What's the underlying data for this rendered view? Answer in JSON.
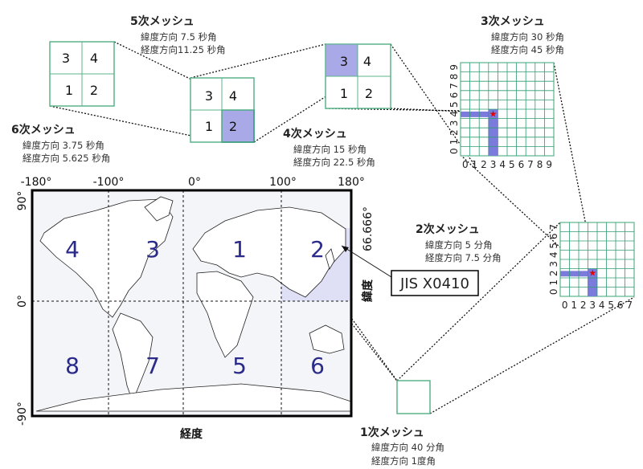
{
  "meshes": {
    "m1": {
      "title": "1次メッシュ",
      "lat": "緯度方向 40 分角",
      "lon": "経度方向 1度角"
    },
    "m2": {
      "title": "2次メッシュ",
      "lat": "緯度方向 5 分角",
      "lon": "経度方向 7.5 分角",
      "ticks": [
        "0",
        "1",
        "2",
        "3",
        "4",
        "5",
        "6",
        "7"
      ]
    },
    "m3": {
      "title": "3次メッシュ",
      "lat": "緯度方向 30 秒角",
      "lon": "経度方向 45 秒角",
      "ticks": [
        "0",
        "1",
        "2",
        "3",
        "4",
        "5",
        "6",
        "7",
        "8",
        "9"
      ]
    },
    "m4": {
      "title": "4次メッシュ",
      "lat": "緯度方向 15 秒角",
      "lon": "経度方向 22.5 秒角",
      "cells": [
        "3",
        "4",
        "1",
        "2"
      ],
      "highlight": "3"
    },
    "m5": {
      "title": "5次メッシュ",
      "lat": "緯度方向 7.5 秒角",
      "lon": "経度方向11.25 秒角",
      "cells": [
        "3",
        "4",
        "1",
        "2"
      ],
      "highlight": "2"
    },
    "m6": {
      "title": "6次メッシュ",
      "lat": "緯度方向 3.75 秒角",
      "lon": "経度方向 5.625 秒角",
      "cells": [
        "3",
        "4",
        "1",
        "2"
      ]
    }
  },
  "map": {
    "x_ticks": [
      "-180°",
      "-100°",
      "0°",
      "100°",
      "180°"
    ],
    "y_ticks": [
      "90°",
      "0°",
      "-90°"
    ],
    "right_tick": "66.666°",
    "xlabel": "経度",
    "ylabel": "緯度",
    "zones_top": [
      "4",
      "3",
      "1",
      "2"
    ],
    "zones_bottom": [
      "8",
      "7",
      "5",
      "6"
    ],
    "highlight_zone": "2"
  },
  "callout": "JIS X0410",
  "colors": {
    "grid": "#2e9b72",
    "highlight": "#a9a9e8",
    "bar": "#7b7bdc",
    "star": "#e00000"
  }
}
